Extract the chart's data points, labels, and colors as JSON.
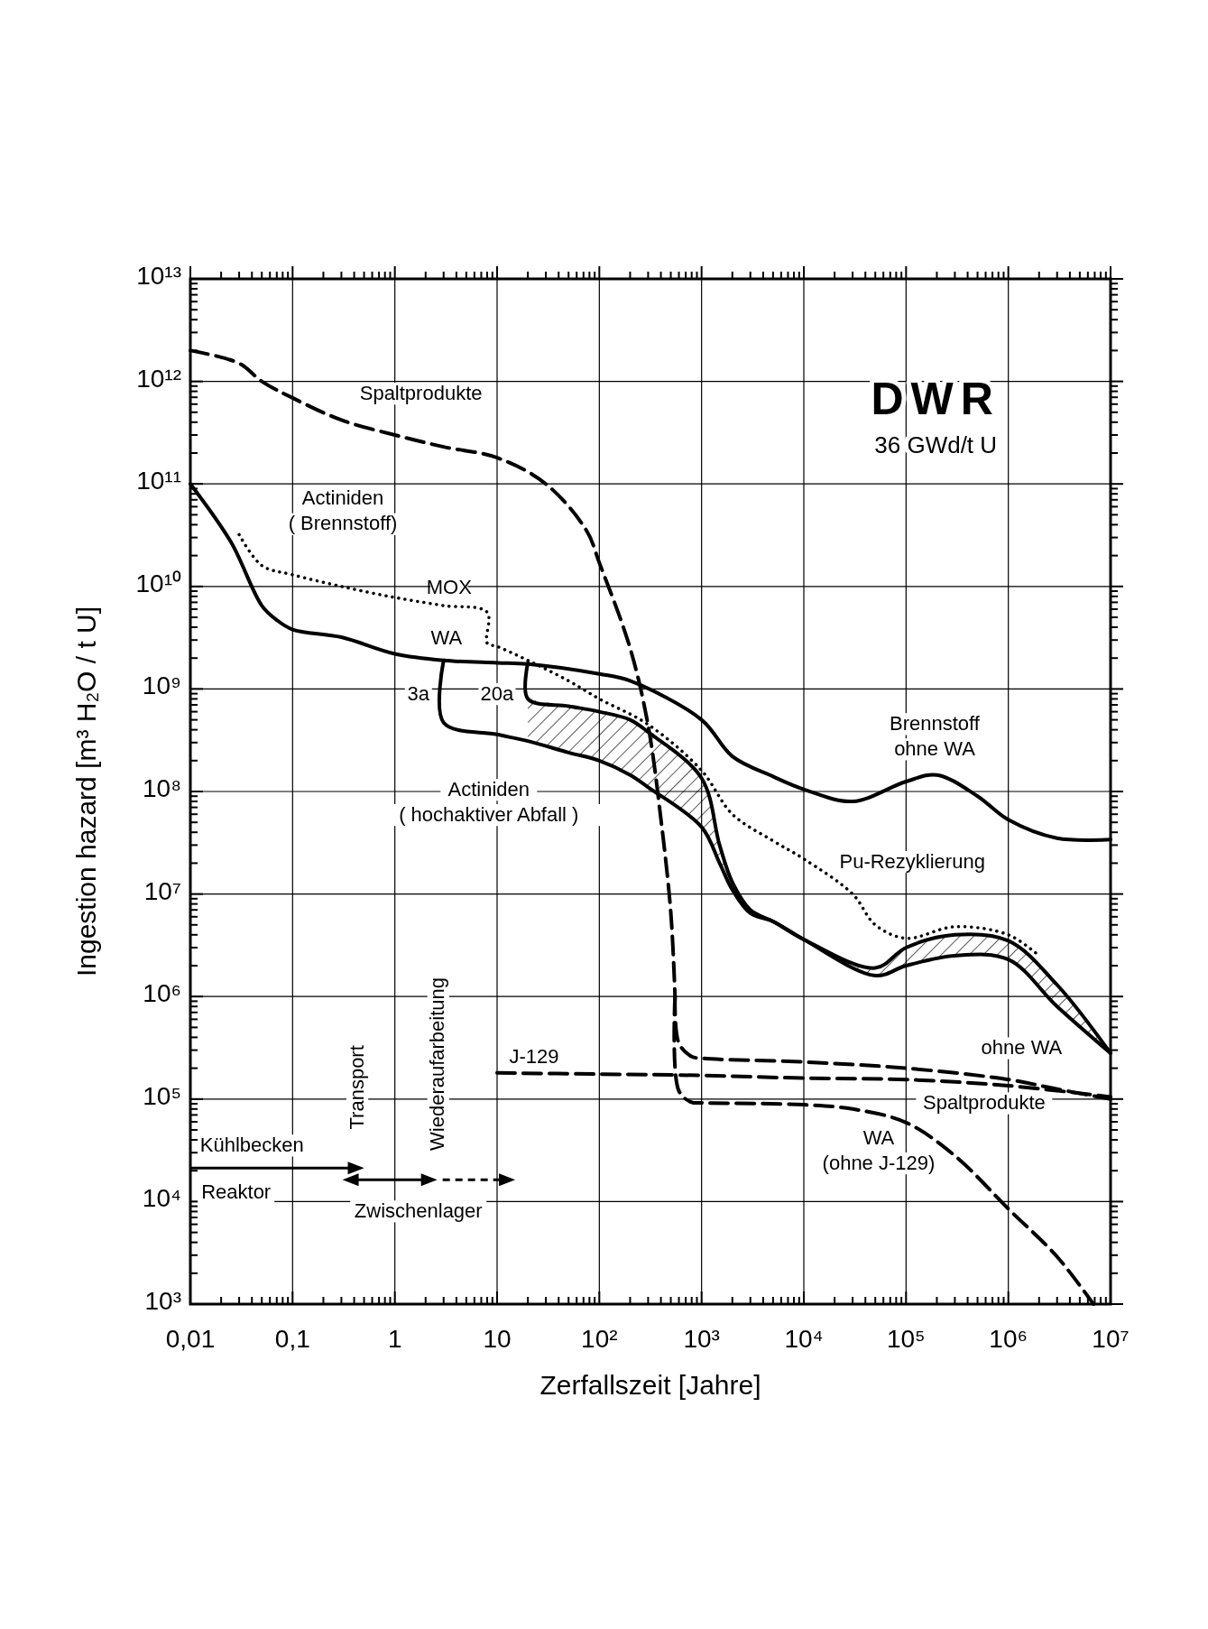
{
  "chart_data": {
    "type": "line",
    "title": "DWR",
    "subtitle": "36 GWd/t U",
    "xlabel": "Zerfallszeit [Jahre]",
    "ylabel": "Ingestion hazard [m³ H₂O / t U]",
    "log": "xy",
    "grid": true,
    "xlim": [
      0.01,
      10000000.0
    ],
    "ylim": [
      1000.0,
      10000000000000.0
    ],
    "xticks": [
      {
        "value": 0.01,
        "label": "0,01"
      },
      {
        "value": 0.02,
        "label": null
      },
      {
        "value": 0.03,
        "label": null
      },
      {
        "value": 0.04,
        "label": null
      },
      {
        "value": 0.05,
        "label": null
      },
      {
        "value": 0.06,
        "label": null
      },
      {
        "value": 0.07,
        "label": null
      },
      {
        "value": 0.08,
        "label": null
      },
      {
        "value": 0.09,
        "label": null
      },
      {
        "value": 0.1,
        "label": "0,1"
      },
      {
        "value": 0.2,
        "label": null
      },
      {
        "value": 0.3,
        "label": null
      },
      {
        "value": 0.4,
        "label": null
      },
      {
        "value": 0.5,
        "label": null
      },
      {
        "value": 0.6,
        "label": null
      },
      {
        "value": 0.7,
        "label": null
      },
      {
        "value": 0.8,
        "label": null
      },
      {
        "value": 0.9,
        "label": null
      },
      1,
      {
        "value": 2,
        "label": null
      },
      {
        "value": 3,
        "label": null
      },
      {
        "value": 4,
        "label": null
      },
      {
        "value": 5,
        "label": null
      },
      {
        "value": 6,
        "label": null
      },
      {
        "value": 7,
        "label": null
      },
      {
        "value": 8,
        "label": null
      },
      {
        "value": 9,
        "label": null
      },
      10,
      {
        "value": 20,
        "label": null
      },
      {
        "value": 30,
        "label": null
      },
      {
        "value": 40,
        "label": null
      },
      {
        "value": 50,
        "label": null
      },
      {
        "value": 60,
        "label": null
      },
      {
        "value": 70,
        "label": null
      },
      {
        "value": 80,
        "label": null
      },
      {
        "value": 90,
        "label": null
      },
      {
        "value": 100,
        "label": "10²"
      },
      {
        "value": 200,
        "label": null
      },
      {
        "value": 300,
        "label": null
      },
      {
        "value": 400,
        "label": null
      },
      {
        "value": 500,
        "label": null
      },
      {
        "value": 600,
        "label": null
      },
      {
        "value": 700,
        "label": null
      },
      {
        "value": 800,
        "label": null
      },
      {
        "value": 900,
        "label": null
      },
      {
        "value": 1000.0,
        "label": "10³"
      },
      {
        "value": 2000.0,
        "label": null
      },
      {
        "value": 3000.0,
        "label": null
      },
      {
        "value": 4000.0,
        "label": null
      },
      {
        "value": 5000.0,
        "label": null
      },
      {
        "value": 6000.0,
        "label": null
      },
      {
        "value": 7000.0,
        "label": null
      },
      {
        "value": 8000.0,
        "label": null
      },
      {
        "value": 9000.0,
        "label": null
      },
      {
        "value": 10000.0,
        "label": "10⁴"
      },
      {
        "value": 20000.0,
        "label": null
      },
      {
        "value": 30000.0,
        "label": null
      },
      {
        "value": 40000.0,
        "label": null
      },
      {
        "value": 50000.0,
        "label": null
      },
      {
        "value": 60000.0,
        "label": null
      },
      {
        "value": 70000.0,
        "label": null
      },
      {
        "value": 80000.0,
        "label": null
      },
      {
        "value": 90000.0,
        "label": null
      },
      {
        "value": 100000.0,
        "label": "10⁵"
      },
      {
        "value": 200000.0,
        "label": null
      },
      {
        "value": 300000.0,
        "label": null
      },
      {
        "value": 400000.0,
        "label": null
      },
      {
        "value": 500000.0,
        "label": null
      },
      {
        "value": 600000.0,
        "label": null
      },
      {
        "value": 700000.0,
        "label": null
      },
      {
        "value": 800000.0,
        "label": null
      },
      {
        "value": 900000.0,
        "label": null
      },
      {
        "value": 1000000.0,
        "label": "10⁶"
      },
      {
        "value": 2000000.0,
        "label": null
      },
      {
        "value": 3000000.0,
        "label": null
      },
      {
        "value": 4000000.0,
        "label": null
      },
      {
        "value": 5000000.0,
        "label": null
      },
      {
        "value": 6000000.0,
        "label": null
      },
      {
        "value": 7000000.0,
        "label": null
      },
      {
        "value": 8000000.0,
        "label": null
      },
      {
        "value": 9000000.0,
        "label": null
      },
      {
        "value": 10000000.0,
        "label": "10⁷"
      }
    ],
    "yticks": [
      {
        "value": 1000.0,
        "label": "10³"
      },
      {
        "value": 2000.0,
        "label": null
      },
      {
        "value": 3000.0,
        "label": null
      },
      {
        "value": 4000.0,
        "label": null
      },
      {
        "value": 5000.0,
        "label": null
      },
      {
        "value": 6000.0,
        "label": null
      },
      {
        "value": 7000.0,
        "label": null
      },
      {
        "value": 8000.0,
        "label": null
      },
      {
        "value": 9000.0,
        "label": null
      },
      {
        "value": 10000.0,
        "label": "10⁴"
      },
      {
        "value": 20000.0,
        "label": null
      },
      {
        "value": 30000.0,
        "label": null
      },
      {
        "value": 40000.0,
        "label": null
      },
      {
        "value": 50000.0,
        "label": null
      },
      {
        "value": 60000.0,
        "label": null
      },
      {
        "value": 70000.0,
        "label": null
      },
      {
        "value": 80000.0,
        "label": null
      },
      {
        "value": 90000.0,
        "label": null
      },
      {
        "value": 100000.0,
        "label": "10⁵"
      },
      {
        "value": 200000.0,
        "label": null
      },
      {
        "value": 300000.0,
        "label": null
      },
      {
        "value": 400000.0,
        "label": null
      },
      {
        "value": 500000.0,
        "label": null
      },
      {
        "value": 600000.0,
        "label": null
      },
      {
        "value": 700000.0,
        "label": null
      },
      {
        "value": 800000.0,
        "label": null
      },
      {
        "value": 900000.0,
        "label": null
      },
      {
        "value": 1000000.0,
        "label": "10⁶"
      },
      {
        "value": 2000000.0,
        "label": null
      },
      {
        "value": 3000000.0,
        "label": null
      },
      {
        "value": 4000000.0,
        "label": null
      },
      {
        "value": 5000000.0,
        "label": null
      },
      {
        "value": 6000000.0,
        "label": null
      },
      {
        "value": 7000000.0,
        "label": null
      },
      {
        "value": 8000000.0,
        "label": null
      },
      {
        "value": 9000000.0,
        "label": null
      },
      {
        "value": 10000000.0,
        "label": "10⁷"
      },
      {
        "value": 20000000.0,
        "label": null
      },
      {
        "value": 30000000.0,
        "label": null
      },
      {
        "value": 40000000.0,
        "label": null
      },
      {
        "value": 50000000.0,
        "label": null
      },
      {
        "value": 60000000.0,
        "label": null
      },
      {
        "value": 70000000.0,
        "label": null
      },
      {
        "value": 80000000.0,
        "label": null
      },
      {
        "value": 90000000.0,
        "label": null
      },
      {
        "value": 100000000.0,
        "label": "10⁸"
      },
      {
        "value": 200000000.0,
        "label": null
      },
      {
        "value": 300000000.0,
        "label": null
      },
      {
        "value": 400000000.0,
        "label": null
      },
      {
        "value": 500000000.0,
        "label": null
      },
      {
        "value": 600000000.0,
        "label": null
      },
      {
        "value": 700000000.0,
        "label": null
      },
      {
        "value": 800000000.0,
        "label": null
      },
      {
        "value": 900000000.0,
        "label": null
      },
      {
        "value": 1000000000.0,
        "label": "10⁹"
      },
      {
        "value": 2000000000.0,
        "label": null
      },
      {
        "value": 3000000000.0,
        "label": null
      },
      {
        "value": 4000000000.0,
        "label": null
      },
      {
        "value": 5000000000.0,
        "label": null
      },
      {
        "value": 6000000000.0,
        "label": null
      },
      {
        "value": 7000000000.0,
        "label": null
      },
      {
        "value": 8000000000.0,
        "label": null
      },
      {
        "value": 9000000000.0,
        "label": null
      },
      {
        "value": 10000000000.0,
        "label": "10¹⁰"
      },
      {
        "value": 20000000000.0,
        "label": null
      },
      {
        "value": 30000000000.0,
        "label": null
      },
      {
        "value": 40000000000.0,
        "label": null
      },
      {
        "value": 50000000000.0,
        "label": null
      },
      {
        "value": 60000000000.0,
        "label": null
      },
      {
        "value": 70000000000.0,
        "label": null
      },
      {
        "value": 80000000000.0,
        "label": null
      },
      {
        "value": 90000000000.0,
        "label": null
      },
      {
        "value": 100000000000.0,
        "label": "10¹¹"
      },
      {
        "value": 200000000000.0,
        "label": null
      },
      {
        "value": 300000000000.0,
        "label": null
      },
      {
        "value": 400000000000.0,
        "label": null
      },
      {
        "value": 500000000000.0,
        "label": null
      },
      {
        "value": 600000000000.0,
        "label": null
      },
      {
        "value": 700000000000.0,
        "label": null
      },
      {
        "value": 800000000000.0,
        "label": null
      },
      {
        "value": 900000000000.0,
        "label": null
      },
      {
        "value": 1000000000000.0,
        "label": "10¹²"
      },
      {
        "value": 2000000000000.0,
        "label": null
      },
      {
        "value": 3000000000000.0,
        "label": null
      },
      {
        "value": 4000000000000.0,
        "label": null
      },
      {
        "value": 5000000000000.0,
        "label": null
      },
      {
        "value": 6000000000000.0,
        "label": null
      },
      {
        "value": 7000000000000.0,
        "label": null
      },
      {
        "value": 8000000000000.0,
        "label": null
      },
      {
        "value": 9000000000000.0,
        "label": null
      },
      {
        "value": 10000000000000.0,
        "label": "10¹³"
      }
    ],
    "series": [
      {
        "color": "#000000",
        "line_style": "dashed",
        "x": [
          0.01,
          0.03,
          0.05,
          0.1,
          0.3,
          1,
          3,
          10,
          30,
          75,
          100,
          200,
          300,
          400,
          500,
          550
        ],
        "values": [
          2000000000000.0,
          1500000000000.0,
          1000000000000.0,
          690000000000.0,
          420000000000.0,
          300000000000.0,
          230000000000.0,
          180000000000.0,
          100000000000.0,
          35000000000.0,
          17000000000.0,
          2500000000.0,
          440000000.0,
          54000000.0,
          6600000.0,
          1000000.0
        ]
      },
      {
        "color": "#000000",
        "line_style": "dashed",
        "x": [
          550,
          600,
          800,
          1000.0,
          10000.0,
          100000.0,
          1000000.0,
          3000000.0,
          10000000.0
        ],
        "values": [
          1000000.0,
          350000.0,
          260000.0,
          250000.0,
          230000.0,
          200000.0,
          155000.0,
          125000.0,
          100000.0
        ]
      },
      {
        "color": "#000000",
        "line_style": "dashed",
        "x": [
          550,
          600,
          800,
          1000.0,
          10000.0,
          30000.0,
          100000.0,
          300000.0,
          1000000.0,
          3000000.0,
          6800000.0
        ],
        "values": [
          1000000.0,
          120000.0,
          93000.0,
          92000.0,
          88000.0,
          80000.0,
          59000.0,
          28000.0,
          8500.0,
          2900.0,
          1000.0
        ]
      },
      {
        "color": "#000000",
        "line_style": "dashed",
        "x": [
          10,
          100,
          1000.0,
          10000.0,
          100000.0,
          1000000.0,
          10000000.0
        ],
        "values": [
          180000.0,
          175000.0,
          170000.0,
          160000.0,
          155000.0,
          135000.0,
          105000.0
        ]
      },
      {
        "color": "#000000",
        "line_style": "solid",
        "x": [
          0.01,
          0.025,
          0.05,
          0.07,
          0.1,
          0.3,
          1,
          3,
          10,
          20,
          100,
          200,
          1000.0,
          2000.0,
          5000.0,
          10000.0,
          30000.0,
          100000.0,
          200000.0,
          500000.0,
          1000000.0,
          3000000.0,
          10000000.0
        ],
        "values": [
          100000000000.0,
          27000000000.0,
          6500000000.0,
          4700000000.0,
          3800000000.0,
          3200000000.0,
          2200000000.0,
          1900000000.0,
          1800000000.0,
          1750000000.0,
          1400000000.0,
          1200000000.0,
          500000000.0,
          220000000.0,
          140000000.0,
          105000000.0,
          80000000.0,
          125000000.0,
          145000000.0,
          90000000.0,
          53000000.0,
          35000000.0,
          34000000.0
        ]
      },
      {
        "color": "#000000",
        "line_style": "dotted",
        "x": [
          0.03,
          0.05,
          0.1,
          0.3,
          1,
          3,
          8,
          8,
          10,
          20,
          50,
          100,
          300,
          1000.0,
          2000.0,
          5000.0,
          10000.0,
          30000.0,
          50000.0,
          100000.0,
          300000.0,
          1000000.0,
          2000000.0
        ],
        "values": [
          32000000000.0,
          16000000000.0,
          13000000000.0,
          10000000000.0,
          7800000000.0,
          6500000000.0,
          5600000000.0,
          2800000000.0,
          2600000000.0,
          1900000000.0,
          1200000000.0,
          800000000.0,
          450000000.0,
          160000000.0,
          60000000.0,
          33000000.0,
          22000000.0,
          10000000.0,
          5000000.0,
          3700000.0,
          4800000.0,
          4000000.0,
          2500000.0
        ]
      },
      {
        "color": "#000000",
        "line_style": "solid",
        "x": [
          3,
          3,
          10,
          20,
          50,
          100,
          200,
          300,
          1000.0,
          1500.0,
          2000.0,
          3000.0,
          5000.0,
          10000.0,
          50000.0,
          100000.0,
          300000.0,
          1000000.0,
          3000000.0,
          10000000.0
        ],
        "values": [
          1900000000.0,
          470000000.0,
          360000000.0,
          310000000.0,
          240000000.0,
          200000000.0,
          145000000.0,
          110000000.0,
          45000000.0,
          20000000.0,
          11000000.0,
          6500000.0,
          5400000.0,
          3600000.0,
          1600000.0,
          2000000.0,
          2500000.0,
          2300000.0,
          800000.0,
          280000.0
        ]
      },
      {
        "color": "#000000",
        "line_style": "solid",
        "x": [
          20,
          20,
          50,
          100,
          200,
          300,
          1000.0,
          1500.0,
          2000.0,
          3000.0,
          5000.0,
          10000.0,
          50000.0,
          100000.0,
          300000.0,
          1000000.0,
          3000000.0,
          10000000.0
        ],
        "values": [
          1800000000.0,
          800000000.0,
          680000000.0,
          600000000.0,
          500000000.0,
          380000000.0,
          135000000.0,
          30000000.0,
          13000000.0,
          7000000.0,
          5400000.0,
          3600000.0,
          1900000.0,
          3000000.0,
          4000000.0,
          3500000.0,
          1300000.0,
          280000.0
        ],
        "lower": [
          null,
          310000000.0,
          240000000.0,
          200000000.0,
          145000000.0,
          110000000.0,
          45000000.0,
          20000000.0,
          11000000.0,
          6500000.0,
          5400000.0,
          3600000.0,
          1600000.0,
          2000000.0,
          2500000.0,
          2300000.0,
          800000.0,
          280000.0
        ],
        "upper": [
          null,
          800000000.0,
          680000000.0,
          600000000.0,
          500000000.0,
          380000000.0,
          135000000.0,
          30000000.0,
          13000000.0,
          7000000.0,
          5400000.0,
          3600000.0,
          1900000.0,
          3000000.0,
          4000000.0,
          3500000.0,
          1300000.0,
          280000.0
        ]
      }
    ],
    "annotations": [
      "Spaltprodukte",
      "Actiniden\n( Brennstoff)",
      "MOX",
      "WA",
      "3a",
      "20a",
      "Actiniden\n( hochaktiver Abfall )",
      "Brennstoff\nohne WA",
      "Pu-Rezyklierung",
      "ohne WA",
      "Spaltprodukte",
      "WA\n(ohne J-129)",
      "J-129",
      "Kühlbecken",
      "Reaktor",
      "Transport",
      "Wiederaufarbeitung",
      "Zwischenlager"
    ]
  }
}
